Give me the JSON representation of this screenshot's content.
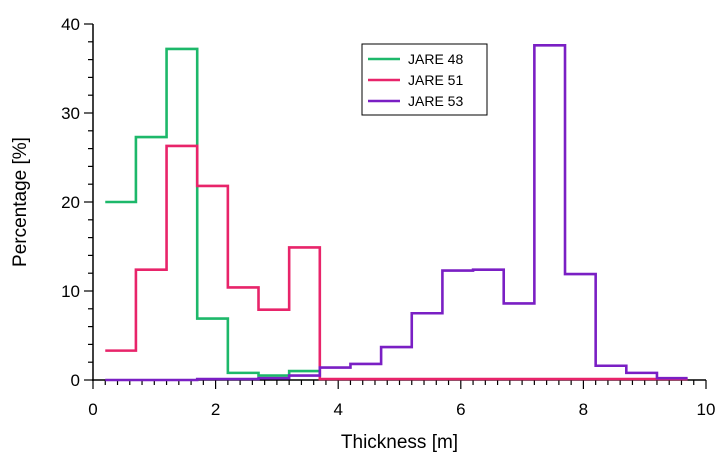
{
  "chart_data": {
    "type": "line",
    "step": true,
    "xlabel": "Thickness [m]",
    "ylabel": "Percentage [%]",
    "xlim": [
      0,
      10
    ],
    "ylim": [
      0,
      40
    ],
    "xticks": [
      0,
      2,
      4,
      6,
      8,
      10
    ],
    "yticks": [
      0,
      10,
      20,
      30,
      40
    ],
    "grid": false,
    "legend_position": "top-center",
    "bin_width": 0.5,
    "series": [
      {
        "name": "JARE 48",
        "color": "#1db86a",
        "bin_starts": [
          0.2,
          0.7,
          1.2,
          1.7,
          2.2,
          2.7,
          3.2
        ],
        "values": [
          20.0,
          27.3,
          37.2,
          6.9,
          0.8,
          0.5,
          1.0
        ]
      },
      {
        "name": "JARE 51",
        "color": "#e8246a",
        "bin_starts": [
          0.2,
          0.7,
          1.2,
          1.7,
          2.2,
          2.7,
          3.2,
          3.7,
          4.2,
          4.7,
          5.2,
          5.7,
          6.2,
          6.7,
          7.2,
          7.7,
          8.2,
          8.7,
          9.2
        ],
        "values": [
          3.3,
          12.4,
          26.3,
          21.8,
          10.4,
          7.9,
          14.9,
          0.1,
          0.1,
          0.1,
          0.1,
          0.1,
          0.1,
          0.1,
          0.1,
          0.1,
          0.1,
          0.1,
          0.1
        ]
      },
      {
        "name": "JARE 53",
        "color": "#7a1fc4",
        "bin_starts": [
          0.2,
          0.7,
          1.2,
          1.7,
          2.2,
          2.7,
          3.2,
          3.7,
          4.2,
          4.7,
          5.2,
          5.7,
          6.2,
          6.7,
          7.2,
          7.7,
          8.2,
          8.7,
          9.2
        ],
        "values": [
          0.0,
          0.0,
          0.0,
          0.1,
          0.1,
          0.2,
          0.5,
          1.4,
          1.8,
          3.7,
          7.5,
          12.3,
          12.4,
          8.6,
          37.6,
          11.9,
          1.6,
          0.8,
          0.2
        ]
      }
    ]
  }
}
